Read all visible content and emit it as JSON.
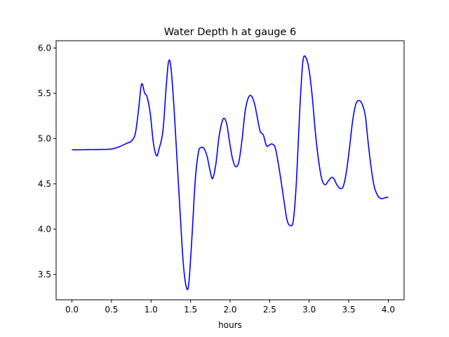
{
  "chart_data": {
    "type": "line",
    "title": "Water Depth h at gauge 6",
    "xlabel": "hours",
    "ylabel": "",
    "xlim": [
      -0.2,
      4.2
    ],
    "ylim": [
      3.22,
      6.08
    ],
    "xticks": [
      0.0,
      0.5,
      1.0,
      1.5,
      2.0,
      2.5,
      3.0,
      3.5,
      4.0
    ],
    "xtick_labels": [
      "0.0",
      "0.5",
      "1.0",
      "1.5",
      "2.0",
      "2.5",
      "3.0",
      "3.5",
      "4.0"
    ],
    "yticks": [
      3.5,
      4.0,
      4.5,
      5.0,
      5.5,
      6.0
    ],
    "ytick_labels": [
      "3.5",
      "4.0",
      "4.5",
      "5.0",
      "5.5",
      "6.0"
    ],
    "grid": false,
    "series": [
      {
        "color": "#0000ff",
        "x": [
          0.0,
          0.2,
          0.4,
          0.5,
          0.6,
          0.7,
          0.75,
          0.8,
          0.84,
          0.88,
          0.92,
          0.95,
          0.99,
          1.03,
          1.07,
          1.1,
          1.15,
          1.19,
          1.22,
          1.25,
          1.29,
          1.33,
          1.37,
          1.41,
          1.45,
          1.48,
          1.52,
          1.56,
          1.6,
          1.63,
          1.67,
          1.71,
          1.75,
          1.78,
          1.82,
          1.86,
          1.9,
          1.93,
          1.96,
          1.99,
          2.03,
          2.07,
          2.11,
          2.15,
          2.19,
          2.23,
          2.27,
          2.31,
          2.34,
          2.38,
          2.42,
          2.46,
          2.5,
          2.53,
          2.57,
          2.61,
          2.65,
          2.68,
          2.72,
          2.76,
          2.8,
          2.84,
          2.88,
          2.92,
          2.96,
          3.0,
          3.04,
          3.08,
          3.12,
          3.16,
          3.2,
          3.24,
          3.28,
          3.31,
          3.35,
          3.39,
          3.43,
          3.47,
          3.51,
          3.55,
          3.59,
          3.63,
          3.67,
          3.71,
          3.74,
          3.78,
          3.82,
          3.86,
          3.9,
          3.94,
          3.97,
          4.0
        ],
        "y": [
          4.875,
          4.877,
          4.88,
          4.885,
          4.91,
          4.95,
          4.97,
          5.05,
          5.3,
          5.6,
          5.5,
          5.46,
          5.28,
          4.95,
          4.81,
          4.88,
          5.08,
          5.55,
          5.84,
          5.8,
          5.35,
          4.75,
          4.15,
          3.6,
          3.35,
          3.42,
          3.95,
          4.55,
          4.85,
          4.9,
          4.89,
          4.8,
          4.63,
          4.56,
          4.72,
          5.02,
          5.19,
          5.22,
          5.15,
          4.98,
          4.78,
          4.69,
          4.74,
          4.98,
          5.3,
          5.45,
          5.47,
          5.38,
          5.25,
          5.08,
          5.04,
          4.92,
          4.93,
          4.94,
          4.9,
          4.72,
          4.5,
          4.32,
          4.1,
          4.04,
          4.1,
          4.55,
          5.3,
          5.85,
          5.89,
          5.75,
          5.45,
          5.05,
          4.75,
          4.55,
          4.49,
          4.53,
          4.57,
          4.56,
          4.49,
          4.45,
          4.47,
          4.63,
          4.9,
          5.2,
          5.38,
          5.42,
          5.38,
          5.25,
          5.0,
          4.7,
          4.48,
          4.38,
          4.34,
          4.34,
          4.35,
          4.35
        ]
      }
    ]
  }
}
